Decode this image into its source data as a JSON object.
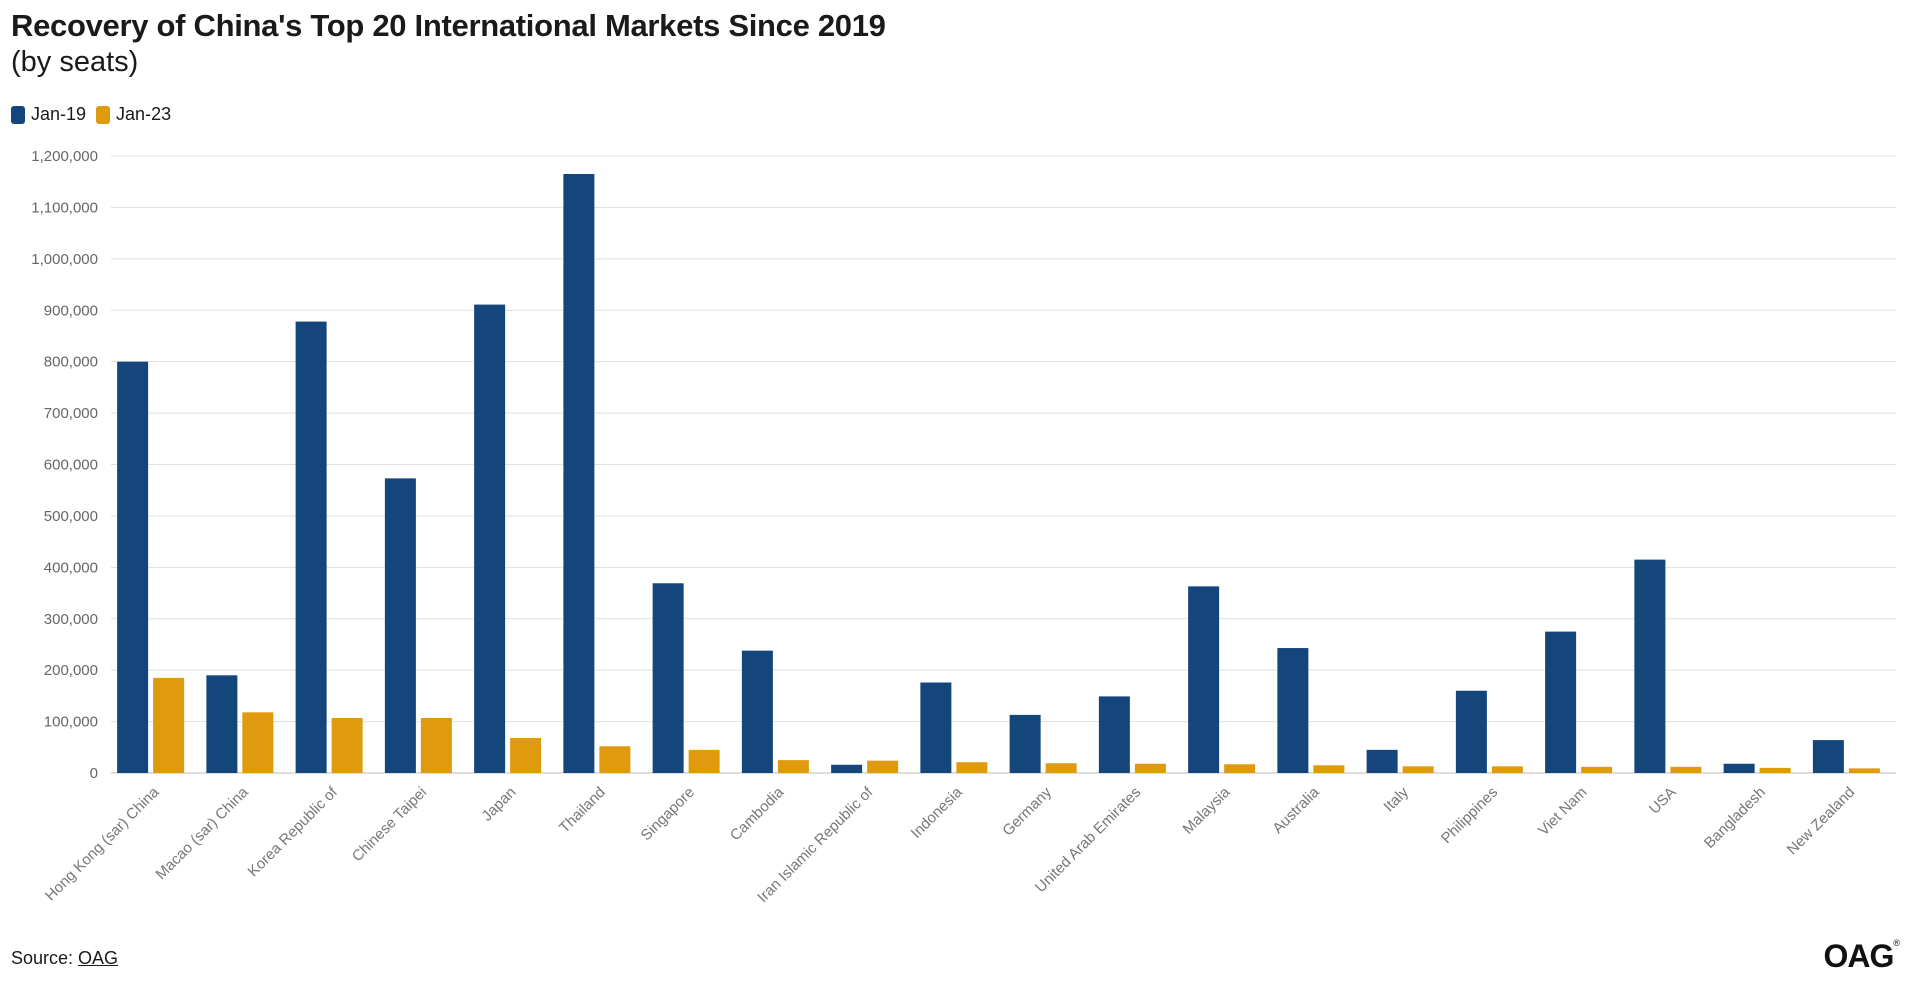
{
  "title": "Recovery of China's Top 20 International Markets Since 2019",
  "subtitle": "(by seats)",
  "legend": [
    {
      "label": "Jan-19",
      "color": "#15467b"
    },
    {
      "label": "Jan-23",
      "color": "#e09a0e"
    }
  ],
  "source": {
    "prefix": "Source: ",
    "link_text": "OAG"
  },
  "logo": "OAG",
  "chart_data": {
    "type": "bar",
    "title": "Recovery of China's Top 20 International Markets Since 2019",
    "subtitle": "(by seats)",
    "xlabel": "",
    "ylabel": "",
    "ylim": [
      0,
      1200000
    ],
    "yticks": [
      0,
      100000,
      200000,
      300000,
      400000,
      500000,
      600000,
      700000,
      800000,
      900000,
      1000000,
      1100000,
      1200000
    ],
    "ytick_labels": [
      "0",
      "100,000",
      "200,000",
      "300,000",
      "400,000",
      "500,000",
      "600,000",
      "700,000",
      "800,000",
      "900,000",
      "1,000,000",
      "1,100,000",
      "1,200,000"
    ],
    "grid": true,
    "legend_position": "top-left",
    "categories": [
      "Hong Kong (sar) China",
      "Macao (sar) China",
      "Korea Republic of",
      "Chinese Taipei",
      "Japan",
      "Thailand",
      "Singapore",
      "Cambodia",
      "Iran Islamic Republic of",
      "Indonesia",
      "Germany",
      "United Arab Emirates",
      "Malaysia",
      "Australia",
      "Italy",
      "Philippines",
      "Viet Nam",
      "USA",
      "Bangladesh",
      "New Zealand"
    ],
    "series": [
      {
        "name": "Jan-19",
        "color": "#15467b",
        "values": [
          800000,
          190000,
          878000,
          573000,
          911000,
          1165000,
          369000,
          238000,
          16000,
          176000,
          113000,
          149000,
          363000,
          243000,
          45000,
          160000,
          275000,
          415000,
          18000,
          64000
        ]
      },
      {
        "name": "Jan-23",
        "color": "#e09a0e",
        "values": [
          185000,
          118000,
          107000,
          107000,
          68000,
          52000,
          45000,
          25000,
          24000,
          21000,
          19000,
          18000,
          17000,
          15000,
          13000,
          13000,
          12000,
          12000,
          10000,
          9000
        ]
      }
    ]
  }
}
